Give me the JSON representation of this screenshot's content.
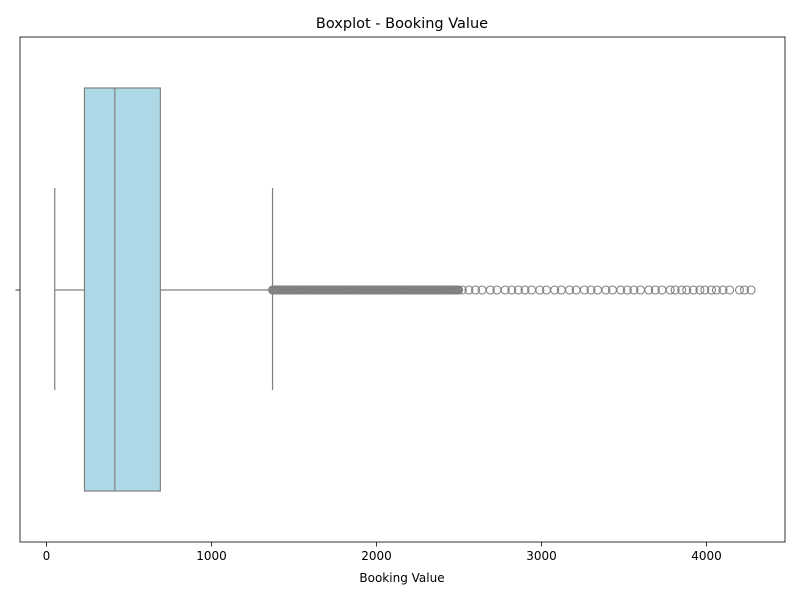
{
  "chart_data": {
    "type": "boxplot",
    "title": "Boxplot - Booking Value",
    "xlabel": "Booking Value",
    "ylabel": "",
    "orientation": "horizontal",
    "xlim": [
      -150,
      4500
    ],
    "xticks": [
      0,
      1000,
      2000,
      3000,
      4000
    ],
    "xtick_labels": [
      "0",
      "1000",
      "2000",
      "3000",
      "4000"
    ],
    "stats": {
      "whisker_low": 50,
      "q1": 230,
      "median": 414,
      "q3": 690,
      "whisker_high": 1370
    },
    "outliers_dense_range": [
      1370,
      2500
    ],
    "outliers_sparse": [
      2520,
      2560,
      2600,
      2640,
      2690,
      2730,
      2780,
      2820,
      2860,
      2900,
      2940,
      2990,
      3030,
      3080,
      3120,
      3170,
      3210,
      3260,
      3300,
      3340,
      3390,
      3430,
      3480,
      3520,
      3560,
      3600,
      3650,
      3690,
      3730,
      3780,
      3810,
      3850,
      3880,
      3920,
      3960,
      3990,
      4030,
      4060,
      4100,
      4140,
      4200,
      4230,
      4270
    ],
    "colors": {
      "box_fill": "#add8e6",
      "line": "#808080"
    },
    "grid": false,
    "legend": "none"
  }
}
